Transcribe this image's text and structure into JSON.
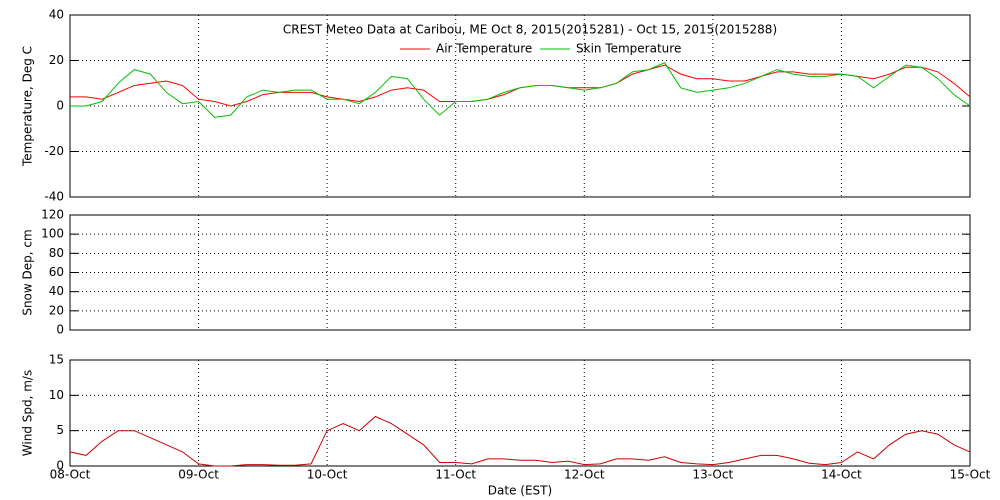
{
  "chart_data": [
    {
      "type": "line",
      "title": "CREST Meteo Data at Caribou, ME   Oct  8, 2015(2015281) - Oct 15, 2015(2015288)",
      "ylabel": "Temperature, Deg C",
      "ylim": [
        -40,
        40
      ],
      "yticks": [
        -40,
        -20,
        0,
        20,
        40
      ],
      "xlim": [
        8,
        15
      ],
      "xticks": [
        8,
        9,
        10,
        11,
        12,
        13,
        14,
        15
      ],
      "grid": true,
      "legend": "top",
      "x": [
        8,
        8.125,
        8.25,
        8.375,
        8.5,
        8.625,
        8.75,
        8.875,
        9,
        9.125,
        9.25,
        9.375,
        9.5,
        9.625,
        9.75,
        9.875,
        10,
        10.125,
        10.25,
        10.375,
        10.5,
        10.625,
        10.75,
        10.875,
        11,
        11.125,
        11.25,
        11.375,
        11.5,
        11.625,
        11.75,
        11.875,
        12,
        12.125,
        12.25,
        12.375,
        12.5,
        12.625,
        12.75,
        12.875,
        13,
        13.125,
        13.25,
        13.375,
        13.5,
        13.625,
        13.75,
        13.875,
        14,
        14.125,
        14.25,
        14.375,
        14.5,
        14.625,
        14.75,
        14.875,
        15
      ],
      "series": [
        {
          "name": "Air Temperature",
          "color": "#ff0000",
          "values": [
            4,
            4,
            3,
            6,
            9,
            10,
            11,
            9,
            3,
            2,
            0,
            2,
            5,
            6,
            6,
            6,
            4,
            3,
            2,
            4,
            7,
            8,
            7,
            2,
            2,
            2,
            3,
            5,
            8,
            9,
            9,
            8,
            8,
            8,
            10,
            14,
            16,
            18,
            14,
            12,
            12,
            11,
            11,
            13,
            15,
            15,
            14,
            14,
            14,
            13,
            12,
            14,
            17,
            17,
            15,
            10,
            4
          ]
        },
        {
          "name": "Skin Temperature",
          "color": "#00c000",
          "values": [
            0,
            0,
            2,
            10,
            16,
            14,
            6,
            1,
            2,
            -5,
            -4,
            4,
            7,
            6,
            7,
            7,
            3,
            3,
            1,
            6,
            13,
            12,
            3,
            -4,
            2,
            2,
            3,
            6,
            8,
            9,
            9,
            8,
            7,
            8,
            10,
            15,
            16,
            19,
            8,
            6,
            7,
            8,
            10,
            13,
            16,
            14,
            13,
            13,
            14,
            13,
            8,
            13,
            18,
            17,
            12,
            5,
            0
          ]
        }
      ]
    },
    {
      "type": "line",
      "ylabel": "Snow Dep, cm",
      "ylim": [
        0,
        120
      ],
      "yticks": [
        0,
        20,
        40,
        60,
        80,
        100,
        120
      ],
      "xlim": [
        8,
        15
      ],
      "xticks": [
        8,
        9,
        10,
        11,
        12,
        13,
        14,
        15
      ],
      "grid": true,
      "series": []
    },
    {
      "type": "line",
      "ylabel": "Wind Spd, m/s",
      "xlabel": "Date (EST)",
      "ylim": [
        0,
        15
      ],
      "yticks": [
        0,
        5,
        10,
        15
      ],
      "xlim": [
        8,
        15
      ],
      "xticks": [
        {
          "value": 8,
          "label": "08-Oct"
        },
        {
          "value": 9,
          "label": "09-Oct"
        },
        {
          "value": 10,
          "label": "10-Oct"
        },
        {
          "value": 11,
          "label": "11-Oct"
        },
        {
          "value": 12,
          "label": "12-Oct"
        },
        {
          "value": 13,
          "label": "13-Oct"
        },
        {
          "value": 14,
          "label": "14-Oct"
        },
        {
          "value": 15,
          "label": "15-Oct"
        }
      ],
      "grid": true,
      "x": [
        8,
        8.125,
        8.25,
        8.375,
        8.5,
        8.625,
        8.75,
        8.875,
        9,
        9.125,
        9.25,
        9.375,
        9.5,
        9.625,
        9.75,
        9.875,
        10,
        10.125,
        10.25,
        10.375,
        10.5,
        10.625,
        10.75,
        10.875,
        11,
        11.125,
        11.25,
        11.375,
        11.5,
        11.625,
        11.75,
        11.875,
        12,
        12.125,
        12.25,
        12.375,
        12.5,
        12.625,
        12.75,
        12.875,
        13,
        13.125,
        13.25,
        13.375,
        13.5,
        13.625,
        13.75,
        13.875,
        14,
        14.125,
        14.25,
        14.375,
        14.5,
        14.625,
        14.75,
        14.875,
        15
      ],
      "series": [
        {
          "color": "#cc0000",
          "values": [
            2,
            1.5,
            3.5,
            5,
            5,
            4,
            3,
            2,
            0.3,
            0,
            0,
            0.2,
            0.2,
            0.1,
            0.1,
            0.3,
            5,
            6,
            5,
            7,
            6,
            4.5,
            3,
            0.5,
            0.5,
            0.3,
            1,
            1,
            0.8,
            0.8,
            0.5,
            0.7,
            0.2,
            0.3,
            1,
            1,
            0.8,
            1.3,
            0.5,
            0.3,
            0.2,
            0.5,
            1,
            1.5,
            1.5,
            1,
            0.4,
            0.2,
            0.5,
            2,
            1,
            3,
            4.5,
            5,
            4.5,
            3,
            2
          ]
        }
      ]
    }
  ]
}
